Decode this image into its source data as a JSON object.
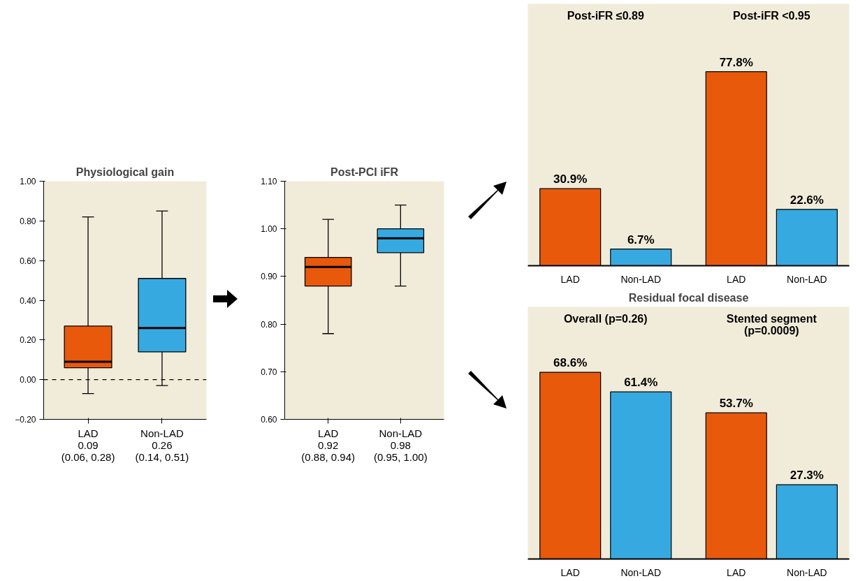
{
  "chart_data": [
    {
      "type": "box",
      "title": "Physiological gain",
      "categories": [
        "LAD",
        "Non-LAD"
      ],
      "colors": [
        "#e8590c",
        "#36a9e1"
      ],
      "boxes": [
        {
          "low": -0.07,
          "q1": 0.06,
          "median": 0.09,
          "q3": 0.27,
          "high": 0.82
        },
        {
          "low": -0.03,
          "q1": 0.14,
          "median": 0.26,
          "q3": 0.51,
          "high": 0.85
        }
      ],
      "ylim": [
        -0.2,
        1.0
      ],
      "yticks": [
        {
          "value": -0.2,
          "label": "−0.20"
        },
        {
          "value": 0.0,
          "label": "0.00"
        },
        {
          "value": 0.2,
          "label": "0.20"
        },
        {
          "value": 0.4,
          "label": "0.40"
        },
        {
          "value": 0.6,
          "label": "0.60"
        },
        {
          "value": 0.8,
          "label": "0.80"
        },
        {
          "value": 1.0,
          "label": "1.00"
        }
      ],
      "ref_lines": [
        {
          "axis": "y",
          "value": 0,
          "line_style": "dashed",
          "color": "#000000"
        }
      ],
      "annotations": [
        "0.09\n(0.06, 0.28)",
        "0.26\n(0.14, 0.51)"
      ],
      "grid": false
    },
    {
      "type": "box",
      "title": "Post-PCI iFR",
      "categories": [
        "LAD",
        "Non-LAD"
      ],
      "colors": [
        "#e8590c",
        "#36a9e1"
      ],
      "boxes": [
        {
          "low": 0.78,
          "q1": 0.88,
          "median": 0.92,
          "q3": 0.94,
          "high": 1.02
        },
        {
          "low": 0.88,
          "q1": 0.95,
          "median": 0.98,
          "q3": 1.0,
          "high": 1.05
        }
      ],
      "ylim": [
        0.6,
        1.1
      ],
      "yticks": [
        {
          "value": 0.6,
          "label": "0.60"
        },
        {
          "value": 0.7,
          "label": "0.70"
        },
        {
          "value": 0.8,
          "label": "0.80"
        },
        {
          "value": 0.9,
          "label": "0.90"
        },
        {
          "value": 1.0,
          "label": "1.00"
        },
        {
          "value": 1.1,
          "label": "1.10"
        }
      ],
      "annotations": [
        "0.92\n(0.88, 0.94)",
        "0.98\n(0.95, 1.00)"
      ],
      "grid": false
    },
    {
      "type": "bar",
      "categories": [
        "LAD",
        "Non-LAD",
        "LAD",
        "Non-LAD"
      ],
      "values": [
        30.9,
        6.7,
        77.8,
        22.6
      ],
      "value_labels": [
        "30.9%",
        "6.7%",
        "77.8%",
        "22.6%"
      ],
      "colors": [
        "#e8590c",
        "#36a9e1",
        "#e8590c",
        "#36a9e1"
      ],
      "annotations": [
        "Post-iFR ≤0.89",
        "Post-iFR <0.95"
      ],
      "grid": false
    },
    {
      "type": "bar",
      "title": "Residual focal disease",
      "categories": [
        "LAD",
        "Non-LAD",
        "LAD",
        "Non-LAD"
      ],
      "values": [
        68.6,
        61.4,
        53.7,
        27.3
      ],
      "value_labels": [
        "68.6%",
        "61.4%",
        "53.7%",
        "27.3%"
      ],
      "colors": [
        "#e8590c",
        "#36a9e1",
        "#e8590c",
        "#36a9e1"
      ],
      "annotations": [
        "Overall (p=0.26)",
        "Stented segment\n(p=0.0009)"
      ],
      "grid": false
    }
  ]
}
